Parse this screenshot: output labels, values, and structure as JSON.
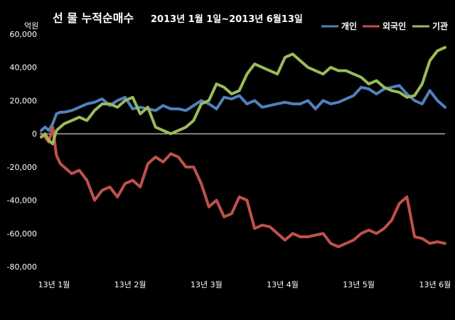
{
  "chart_data": {
    "type": "line",
    "title": "선 물 누적순매수",
    "subtitle": "2013년 1월 1일~2013년 6월13일",
    "ylabel": "억원",
    "xlabel": "",
    "ylim": [
      -80000,
      60000
    ],
    "yticks": [
      60000,
      40000,
      20000,
      0,
      -20000,
      -40000,
      -60000,
      -80000
    ],
    "ytick_labels": [
      "60,000",
      "40,000",
      "20,000",
      "0",
      "-20,000",
      "-40,000",
      "-60,000",
      "-80,000"
    ],
    "xlim": [
      0,
      5.3
    ],
    "xtick_positions": [
      0,
      1,
      2,
      3,
      4,
      5
    ],
    "xtick_labels": [
      "13년 1월",
      "13년 2월",
      "13년 3월",
      "13년 4월",
      "13년 5월",
      "13년 6월"
    ],
    "grid": false,
    "legend_position": "top-right",
    "series": [
      {
        "name": "개인",
        "color": "#4f81bd",
        "x": [
          0,
          0.05,
          0.1,
          0.15,
          0.2,
          0.25,
          0.3,
          0.4,
          0.5,
          0.6,
          0.7,
          0.8,
          0.9,
          1.0,
          1.1,
          1.2,
          1.3,
          1.4,
          1.5,
          1.6,
          1.7,
          1.8,
          1.9,
          2.0,
          2.1,
          2.2,
          2.3,
          2.4,
          2.5,
          2.6,
          2.7,
          2.8,
          2.9,
          3.0,
          3.1,
          3.2,
          3.3,
          3.4,
          3.5,
          3.6,
          3.7,
          3.8,
          3.9,
          4.0,
          4.1,
          4.2,
          4.3,
          4.4,
          4.5,
          4.6,
          4.7,
          4.8,
          4.9,
          5.0,
          5.1,
          5.2,
          5.3
        ],
        "values": [
          2000,
          4000,
          2000,
          6000,
          12000,
          13000,
          13000,
          14000,
          16000,
          18000,
          19000,
          21000,
          17000,
          20000,
          22000,
          15000,
          16000,
          15000,
          14000,
          17000,
          15000,
          15000,
          14000,
          17000,
          20000,
          18000,
          15000,
          22000,
          21000,
          23000,
          18000,
          20000,
          16000,
          17000,
          18000,
          19000,
          18000,
          18000,
          20000,
          15000,
          20000,
          18000,
          19000,
          21000,
          23000,
          28000,
          27000,
          24000,
          27000,
          28000,
          29000,
          24000,
          20000,
          18000,
          26000,
          20000,
          16000
        ]
      },
      {
        "name": "외국인",
        "color": "#c0504d",
        "x": [
          0,
          0.05,
          0.1,
          0.15,
          0.2,
          0.25,
          0.3,
          0.4,
          0.5,
          0.6,
          0.7,
          0.8,
          0.9,
          1.0,
          1.1,
          1.2,
          1.3,
          1.4,
          1.5,
          1.6,
          1.7,
          1.8,
          1.9,
          2.0,
          2.1,
          2.2,
          2.3,
          2.4,
          2.5,
          2.6,
          2.7,
          2.8,
          2.9,
          3.0,
          3.1,
          3.2,
          3.3,
          3.4,
          3.5,
          3.6,
          3.7,
          3.8,
          3.9,
          4.0,
          4.1,
          4.2,
          4.3,
          4.4,
          4.5,
          4.6,
          4.7,
          4.8,
          4.9,
          5.0,
          5.1,
          5.2,
          5.3
        ],
        "values": [
          0,
          -2000,
          -5000,
          4000,
          -13000,
          -18000,
          -20000,
          -24000,
          -22000,
          -28000,
          -40000,
          -34000,
          -32000,
          -38000,
          -30000,
          -28000,
          -32000,
          -18000,
          -14000,
          -17000,
          -12000,
          -14000,
          -20000,
          -20000,
          -30000,
          -44000,
          -40000,
          -50000,
          -48000,
          -38000,
          -40000,
          -57000,
          -55000,
          -56000,
          -60000,
          -64000,
          -60000,
          -62000,
          -62000,
          -61000,
          -60000,
          -66000,
          -68000,
          -66000,
          -64000,
          -60000,
          -58000,
          -60000,
          -57000,
          -52000,
          -42000,
          -38000,
          -62000,
          -63000,
          -66000,
          -65000,
          -66000
        ]
      },
      {
        "name": "기관",
        "color": "#9bbb59",
        "x": [
          0,
          0.05,
          0.1,
          0.15,
          0.2,
          0.25,
          0.3,
          0.4,
          0.5,
          0.6,
          0.7,
          0.8,
          0.9,
          1.0,
          1.1,
          1.2,
          1.3,
          1.4,
          1.5,
          1.6,
          1.7,
          1.8,
          1.9,
          2.0,
          2.1,
          2.2,
          2.3,
          2.4,
          2.5,
          2.6,
          2.7,
          2.8,
          2.9,
          3.0,
          3.1,
          3.2,
          3.3,
          3.4,
          3.5,
          3.6,
          3.7,
          3.8,
          3.9,
          4.0,
          4.1,
          4.2,
          4.3,
          4.4,
          4.5,
          4.6,
          4.7,
          4.8,
          4.9,
          5.0,
          5.1,
          5.2,
          5.3
        ],
        "values": [
          -2000,
          0,
          -4000,
          -6000,
          2000,
          4000,
          6000,
          8000,
          10000,
          8000,
          14000,
          18000,
          18000,
          16000,
          20000,
          22000,
          12000,
          16000,
          4000,
          2000,
          0,
          2000,
          4000,
          8000,
          18000,
          20000,
          30000,
          28000,
          24000,
          26000,
          36000,
          42000,
          40000,
          38000,
          36000,
          46000,
          48000,
          44000,
          40000,
          38000,
          36000,
          40000,
          38000,
          38000,
          36000,
          34000,
          30000,
          32000,
          28000,
          26000,
          25000,
          22000,
          23000,
          30000,
          44000,
          50000,
          52000
        ]
      }
    ]
  }
}
